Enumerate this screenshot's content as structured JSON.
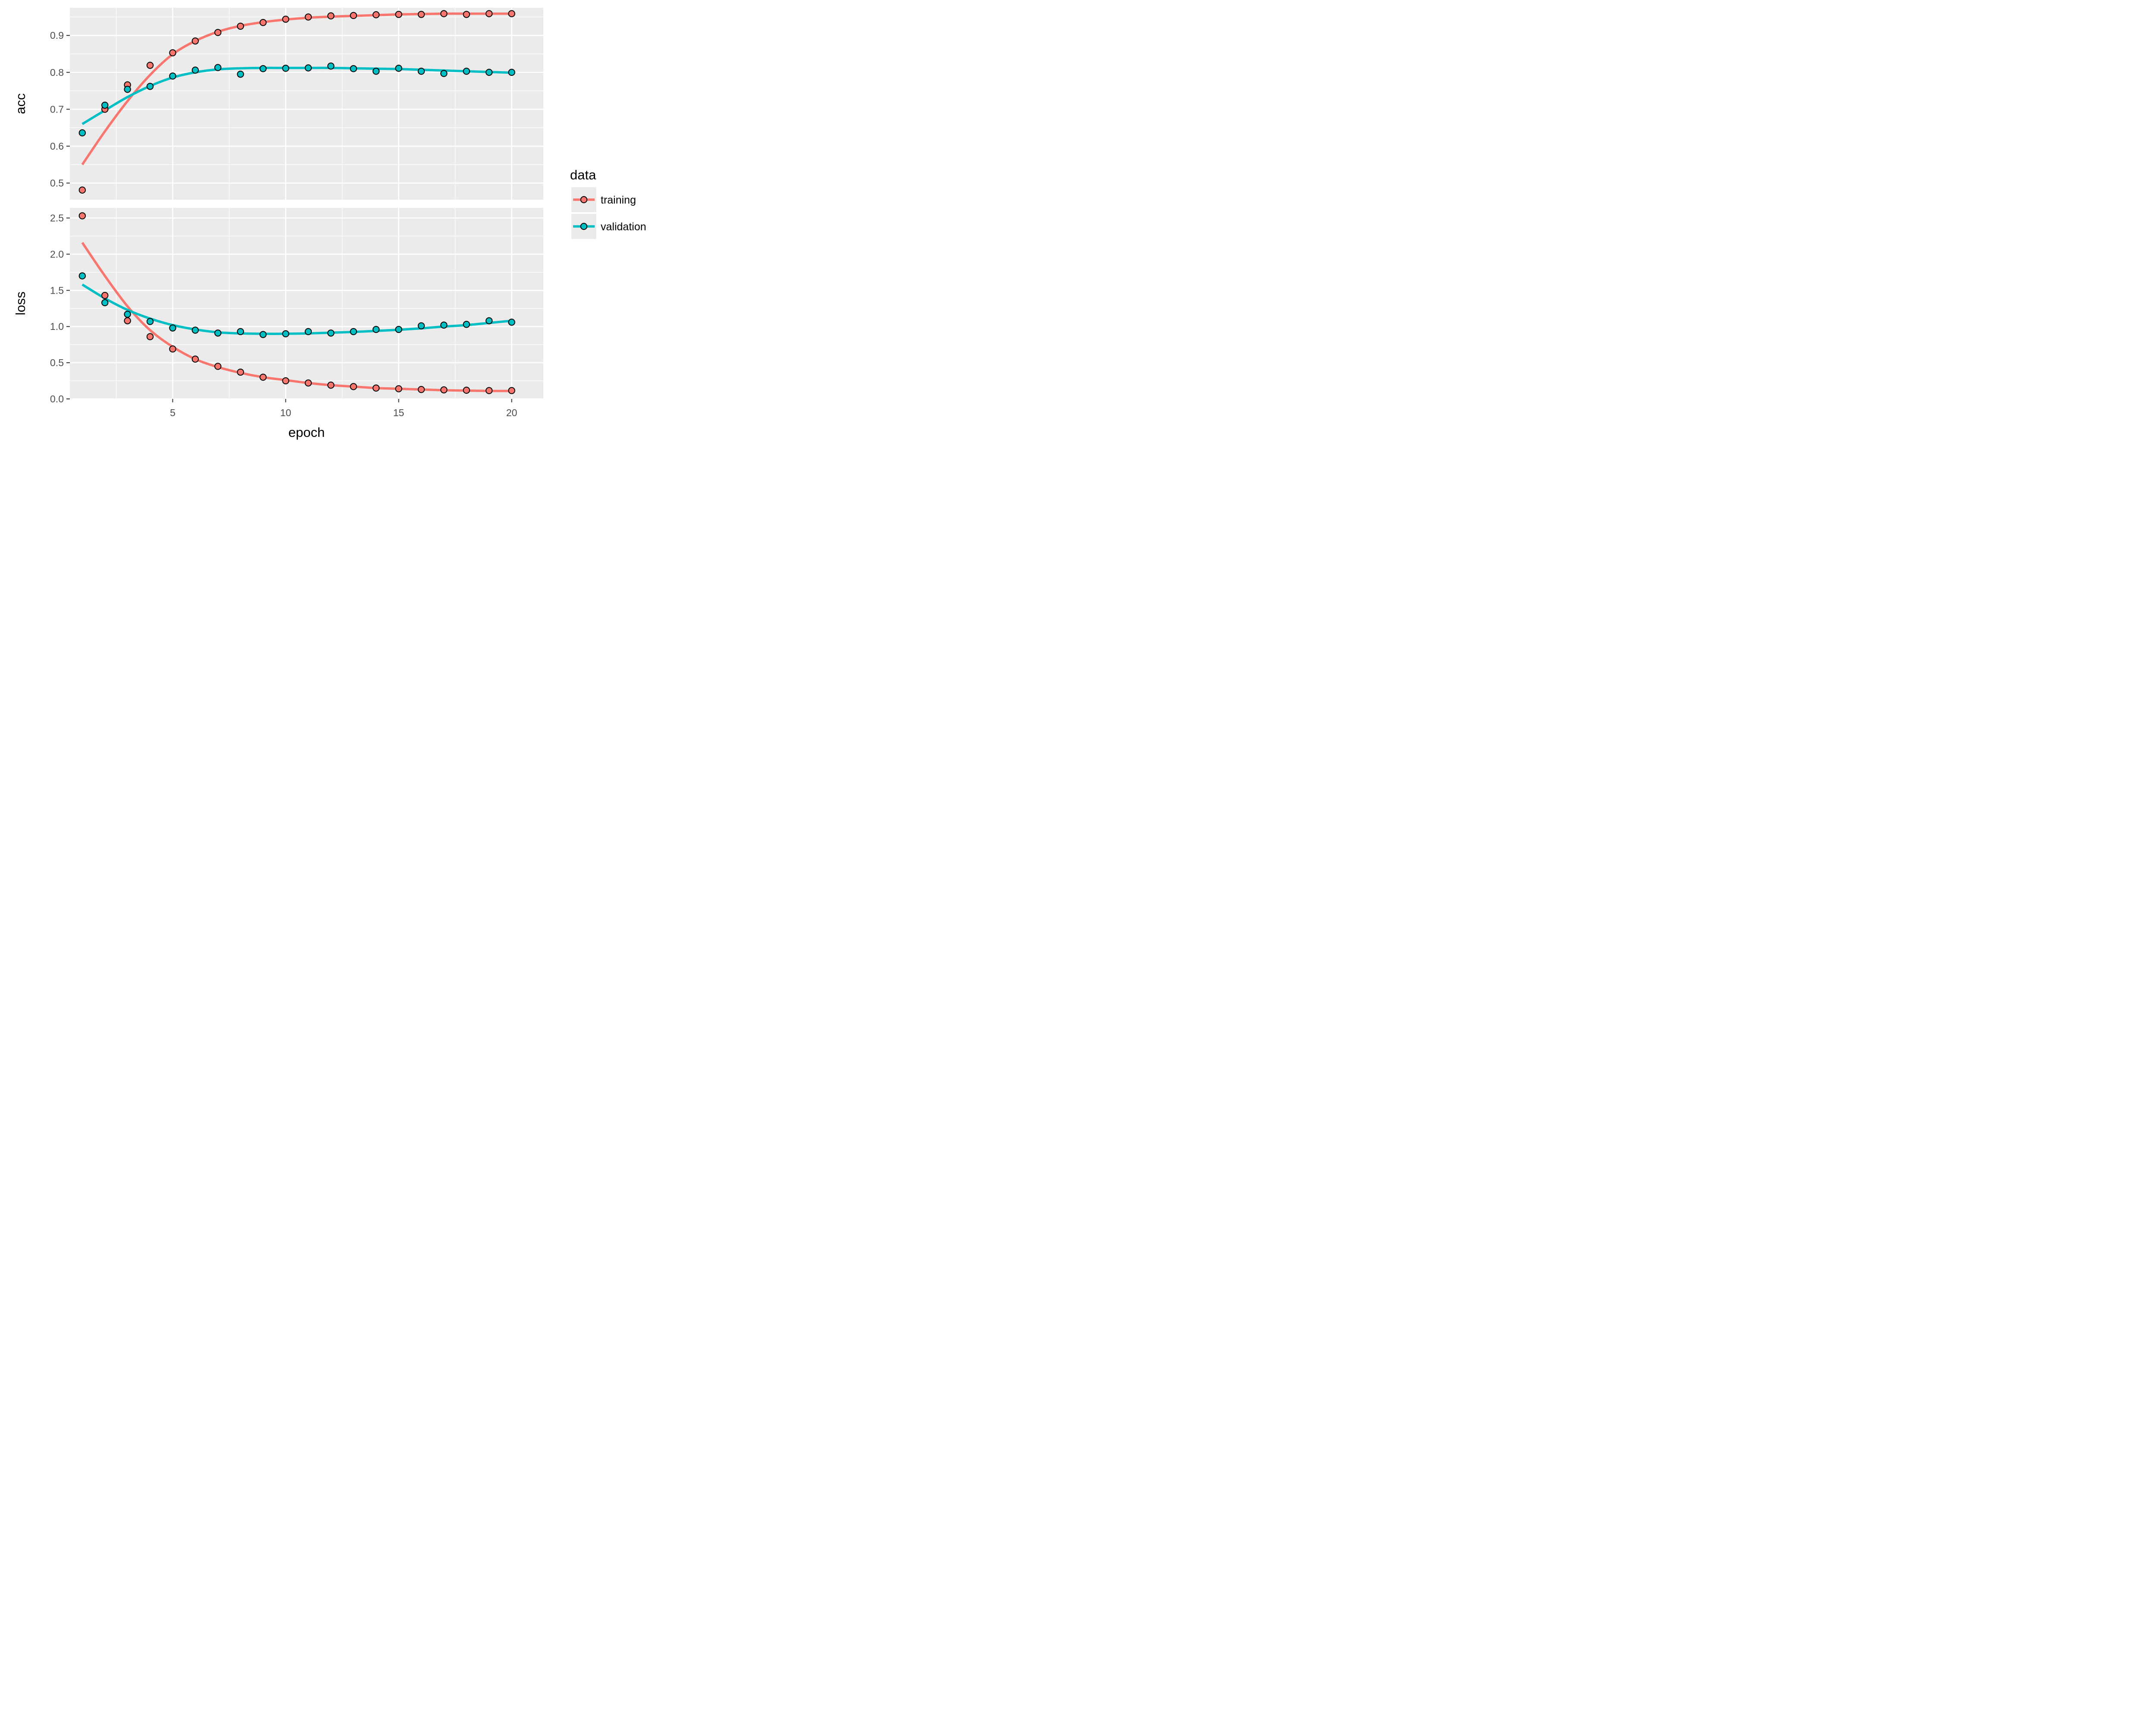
{
  "chart_data": {
    "type": "scatter",
    "x_label": "epoch",
    "x_ticks": [
      5,
      10,
      15,
      20
    ],
    "x": [
      1,
      2,
      3,
      4,
      5,
      6,
      7,
      8,
      9,
      10,
      11,
      12,
      13,
      14,
      15,
      16,
      17,
      18,
      19,
      20
    ],
    "grid": true,
    "legend": {
      "title": "data",
      "placement": "right",
      "entries": [
        {
          "name": "training",
          "color": "#f8766d"
        },
        {
          "name": "validation",
          "color": "#00bfc4"
        }
      ]
    },
    "panels": [
      {
        "y_label": "acc",
        "y_range": [
          0.455,
          0.975
        ],
        "y_ticks": [
          "0.5",
          "0.6",
          "0.7",
          "0.8",
          "0.9"
        ],
        "series": [
          {
            "name": "training",
            "points": [
              0.481,
              0.7,
              0.766,
              0.819,
              0.853,
              0.885,
              0.908,
              0.925,
              0.935,
              0.944,
              0.95,
              0.953,
              0.954,
              0.956,
              0.957,
              0.957,
              0.959,
              0.957,
              0.959,
              0.959
            ],
            "smooth": [
              0.55,
              0.64,
              0.722,
              0.793,
              0.849,
              0.885,
              0.91,
              0.926,
              0.936,
              0.943,
              0.948,
              0.951,
              0.953,
              0.955,
              0.957,
              0.958,
              0.959,
              0.959,
              0.959,
              0.959
            ]
          },
          {
            "name": "validation",
            "points": [
              0.636,
              0.711,
              0.754,
              0.762,
              0.79,
              0.806,
              0.813,
              0.795,
              0.81,
              0.811,
              0.812,
              0.817,
              0.81,
              0.803,
              0.811,
              0.803,
              0.797,
              0.803,
              0.8,
              0.8
            ],
            "smooth": [
              0.66,
              0.697,
              0.733,
              0.763,
              0.786,
              0.8,
              0.808,
              0.811,
              0.812,
              0.812,
              0.812,
              0.812,
              0.811,
              0.81,
              0.809,
              0.807,
              0.805,
              0.803,
              0.801,
              0.799
            ]
          }
        ]
      },
      {
        "y_label": "loss",
        "y_range": [
          0.0,
          2.64
        ],
        "y_ticks": [
          "0.0",
          "0.5",
          "1.0",
          "1.5",
          "2.0",
          "2.5"
        ],
        "series": [
          {
            "name": "training",
            "points": [
              2.53,
              1.43,
              1.08,
              0.86,
              0.69,
              0.55,
              0.45,
              0.37,
              0.3,
              0.25,
              0.22,
              0.19,
              0.17,
              0.15,
              0.14,
              0.13,
              0.125,
              0.12,
              0.115,
              0.115
            ],
            "smooth": [
              2.16,
              1.7,
              1.28,
              0.95,
              0.72,
              0.55,
              0.44,
              0.36,
              0.3,
              0.26,
              0.22,
              0.19,
              0.17,
              0.15,
              0.14,
              0.13,
              0.12,
              0.115,
              0.11,
              0.11
            ]
          },
          {
            "name": "validation",
            "points": [
              1.7,
              1.33,
              1.17,
              1.07,
              0.98,
              0.95,
              0.91,
              0.93,
              0.89,
              0.9,
              0.93,
              0.91,
              0.93,
              0.96,
              0.96,
              1.01,
              1.02,
              1.03,
              1.08,
              1.06
            ],
            "smooth": [
              1.58,
              1.39,
              1.23,
              1.11,
              1.02,
              0.96,
              0.92,
              0.905,
              0.9,
              0.9,
              0.905,
              0.915,
              0.925,
              0.94,
              0.955,
              0.975,
              1.0,
              1.02,
              1.05,
              1.08
            ]
          }
        ]
      }
    ]
  }
}
